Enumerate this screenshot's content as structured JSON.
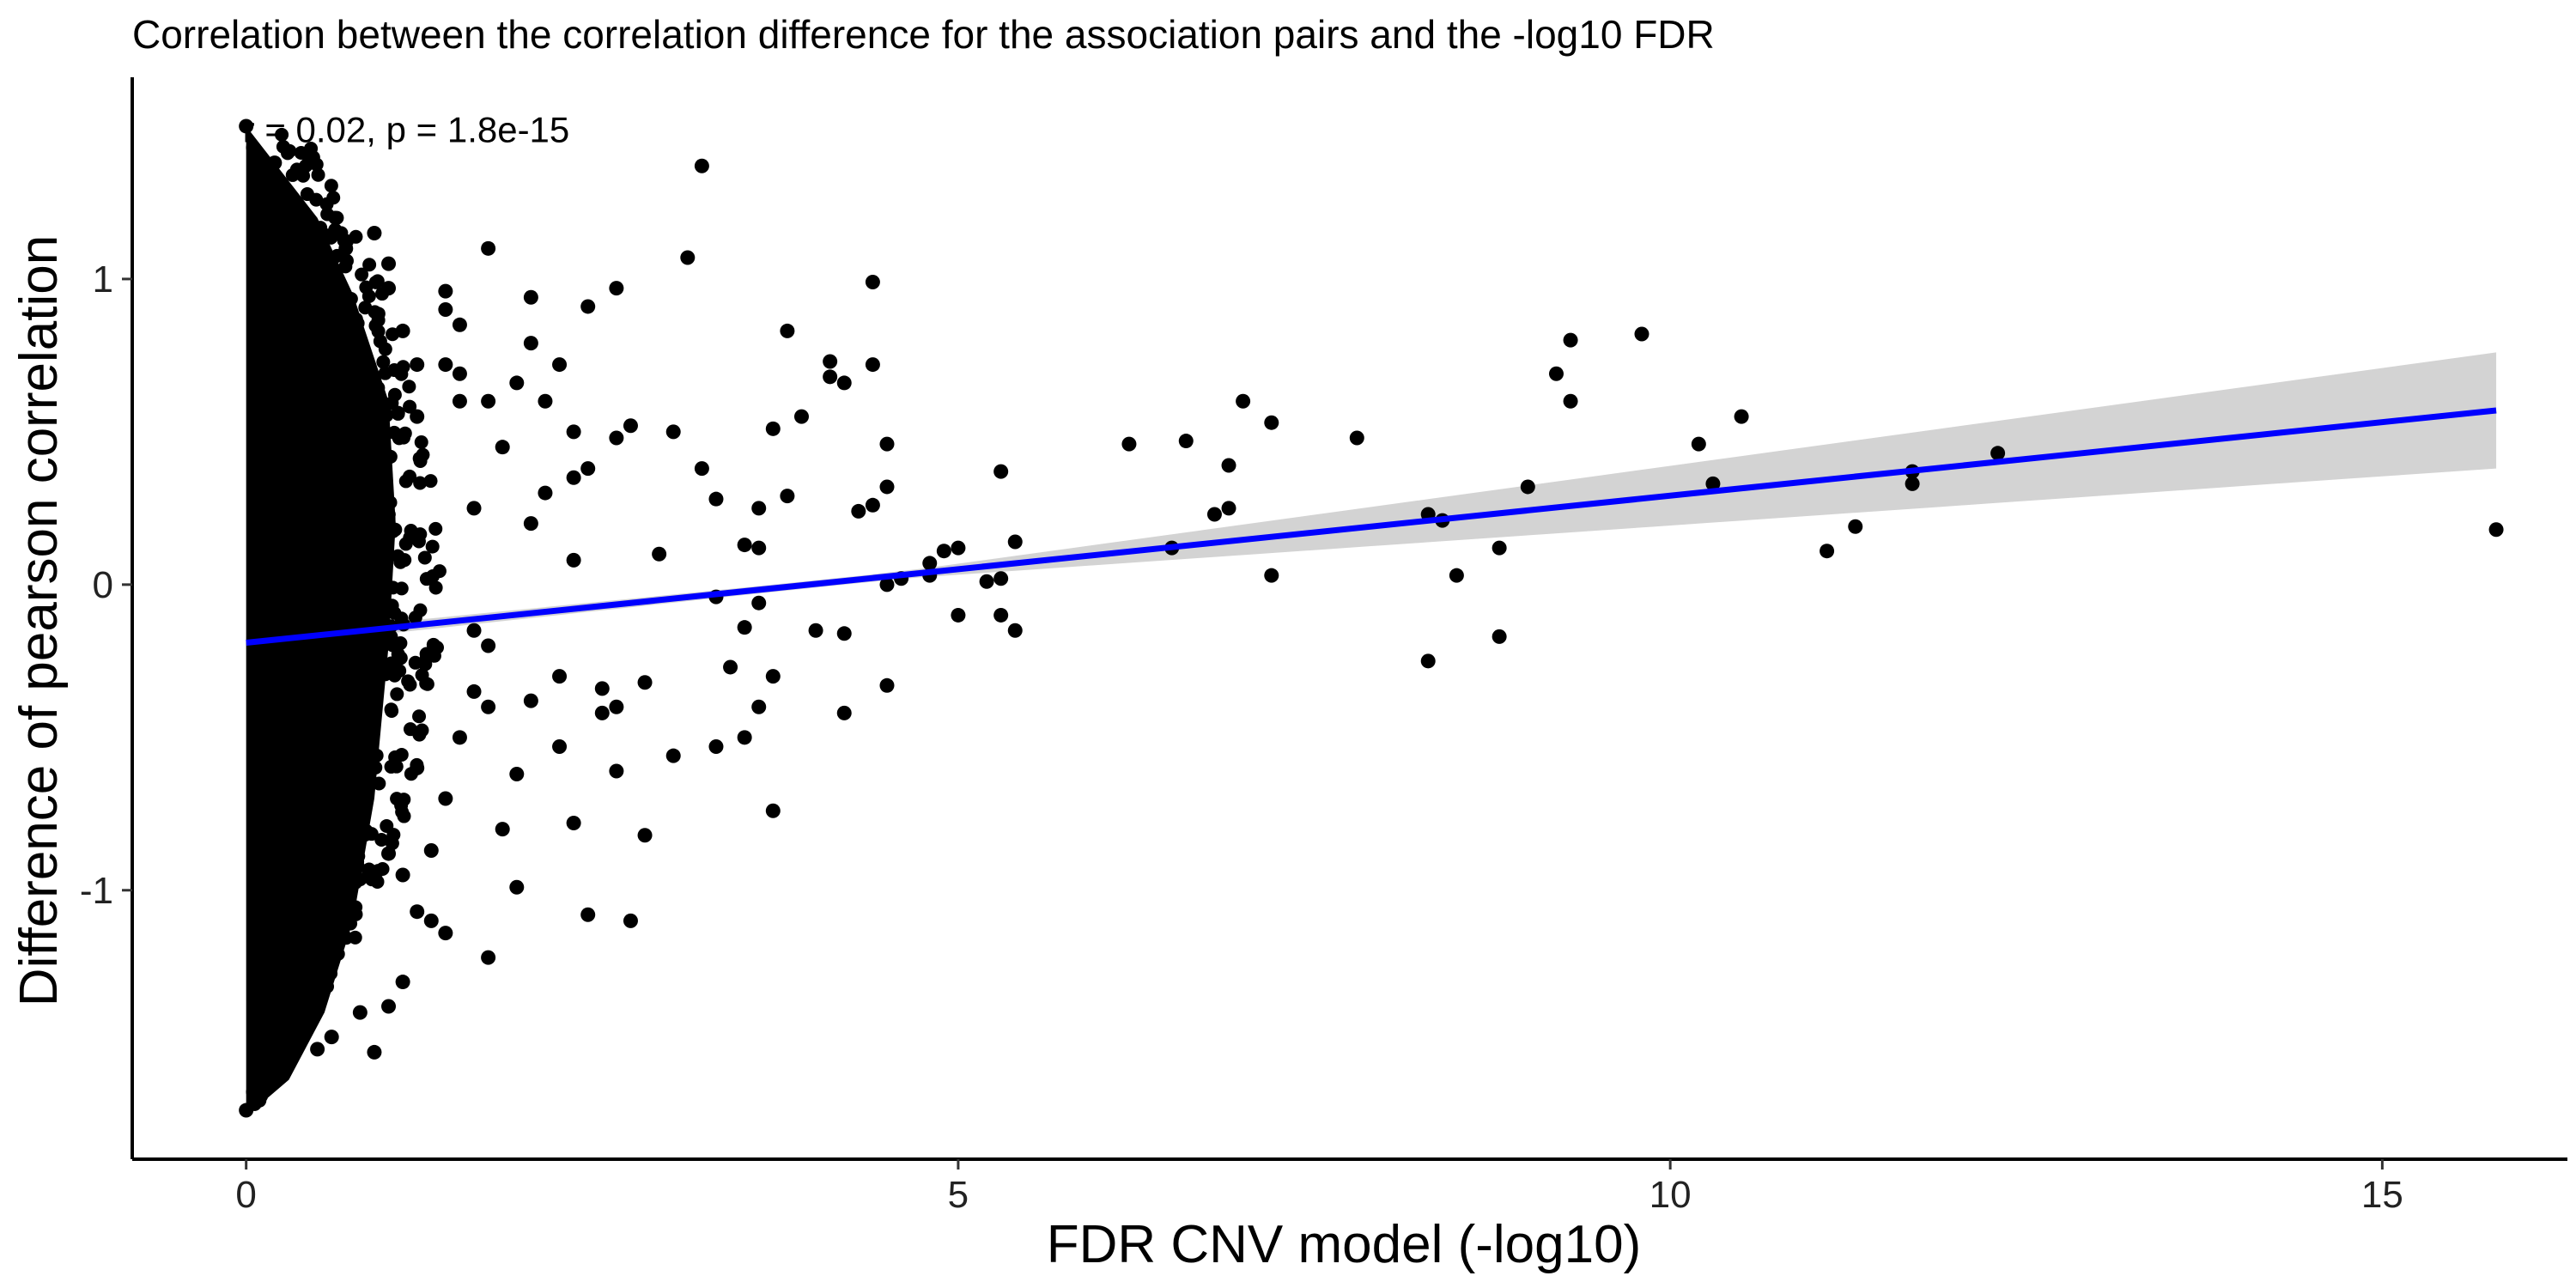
{
  "chart_data": {
    "type": "scatter",
    "title": "Correlation between the correlation difference for the association pairs and the -log10 FDR",
    "xlabel": "FDR CNV model (-log10)",
    "ylabel": "Difference of pearson correlation",
    "xlim": [
      -0.8,
      16.3
    ],
    "ylim": [
      -1.88,
      1.66
    ],
    "x_ticks": [
      0,
      5,
      10,
      15
    ],
    "y_ticks": [
      -1,
      0,
      1
    ],
    "grid": false,
    "legend": "none",
    "annotation": "r = 0.02, p = 1.8e-15",
    "annotation_position": [
      0,
      1.49
    ],
    "point_color": "#000000",
    "fit": {
      "type": "linear",
      "x_range": [
        0,
        15.8
      ],
      "y_start": -0.19,
      "y_end": 0.57,
      "line_color": "#0000ff",
      "band_color": "#d3d3d3",
      "band_halfwidth_start": 0.02,
      "band_halfwidth_end": 0.19,
      "band_min_at": 4.5
    },
    "dense_cluster": {
      "description": "dense mass of points",
      "x_range": [
        0,
        1.0
      ],
      "y_range": [
        -1.7,
        1.5
      ]
    },
    "points": [
      [
        3.2,
        1.37
      ],
      [
        3.1,
        1.07
      ],
      [
        4.4,
        0.99
      ],
      [
        3.8,
        0.83
      ],
      [
        9.8,
        0.82
      ],
      [
        9.3,
        0.8
      ],
      [
        9.2,
        0.69
      ],
      [
        9.3,
        0.6
      ],
      [
        7.0,
        0.6
      ],
      [
        7.2,
        0.53
      ],
      [
        10.5,
        0.55
      ],
      [
        10.2,
        0.46
      ],
      [
        6.2,
        0.46
      ],
      [
        6.6,
        0.47
      ],
      [
        7.8,
        0.48
      ],
      [
        6.9,
        0.39
      ],
      [
        5.3,
        0.37
      ],
      [
        4.1,
        0.73
      ],
      [
        4.4,
        0.72
      ],
      [
        4.1,
        0.68
      ],
      [
        4.2,
        0.66
      ],
      [
        3.9,
        0.55
      ],
      [
        3.7,
        0.51
      ],
      [
        4.5,
        0.46
      ],
      [
        4.5,
        0.32
      ],
      [
        4.4,
        0.26
      ],
      [
        4.3,
        0.24
      ],
      [
        3.8,
        0.29
      ],
      [
        3.6,
        0.25
      ],
      [
        3.5,
        0.13
      ],
      [
        3.6,
        0.12
      ],
      [
        3.3,
        0.28
      ],
      [
        3.2,
        0.38
      ],
      [
        3.0,
        0.5
      ],
      [
        2.7,
        0.52
      ],
      [
        2.6,
        0.48
      ],
      [
        2.9,
        0.1
      ],
      [
        3.3,
        -0.04
      ],
      [
        3.6,
        -0.06
      ],
      [
        3.5,
        -0.14
      ],
      [
        3.4,
        -0.27
      ],
      [
        3.7,
        -0.3
      ],
      [
        3.6,
        -0.4
      ],
      [
        4.0,
        -0.15
      ],
      [
        4.2,
        -0.16
      ],
      [
        4.2,
        -0.42
      ],
      [
        4.5,
        -0.33
      ],
      [
        3.7,
        -0.74
      ],
      [
        3.3,
        -0.53
      ],
      [
        3.5,
        -0.5
      ],
      [
        3.0,
        -0.56
      ],
      [
        2.8,
        -0.32
      ],
      [
        2.6,
        -0.4
      ],
      [
        2.5,
        -0.34
      ],
      [
        2.5,
        -0.42
      ],
      [
        2.8,
        -0.82
      ],
      [
        2.6,
        -0.61
      ],
      [
        2.7,
        -1.1
      ],
      [
        2.4,
        -1.08
      ],
      [
        2.3,
        -0.78
      ],
      [
        2.2,
        -0.53
      ],
      [
        1.9,
        -0.62
      ],
      [
        1.9,
        -0.99
      ],
      [
        1.8,
        -0.8
      ],
      [
        1.7,
        -0.4
      ],
      [
        1.7,
        -0.2
      ],
      [
        1.6,
        -0.15
      ],
      [
        1.7,
        -1.22
      ],
      [
        2.0,
        -0.38
      ],
      [
        2.2,
        -0.3
      ],
      [
        2.3,
        0.08
      ],
      [
        2.6,
        0.97
      ],
      [
        2.4,
        0.91
      ],
      [
        2.0,
        0.94
      ],
      [
        1.7,
        1.1
      ],
      [
        2.2,
        0.72
      ],
      [
        2.0,
        0.79
      ],
      [
        2.1,
        0.6
      ],
      [
        2.3,
        0.5
      ],
      [
        2.4,
        0.38
      ],
      [
        2.3,
        0.35
      ],
      [
        2.1,
        0.3
      ],
      [
        2.0,
        0.2
      ],
      [
        1.6,
        0.25
      ],
      [
        1.5,
        0.85
      ],
      [
        1.4,
        0.96
      ],
      [
        1.4,
        0.9
      ],
      [
        1.5,
        0.69
      ],
      [
        1.5,
        0.6
      ],
      [
        1.4,
        0.72
      ],
      [
        1.2,
        0.72
      ],
      [
        1.2,
        0.55
      ],
      [
        1.0,
        1.05
      ],
      [
        1.0,
        0.97
      ],
      [
        1.1,
        0.83
      ],
      [
        0.9,
        1.15
      ],
      [
        1.7,
        0.6
      ],
      [
        1.9,
        0.66
      ],
      [
        1.8,
        0.45
      ],
      [
        1.1,
        -1.3
      ],
      [
        1.2,
        -1.07
      ],
      [
        1.3,
        -1.1
      ],
      [
        1.4,
        -1.14
      ],
      [
        1.0,
        -1.38
      ],
      [
        0.9,
        -1.53
      ],
      [
        1.1,
        -0.95
      ],
      [
        1.0,
        -0.88
      ],
      [
        1.3,
        -0.87
      ],
      [
        1.4,
        -0.7
      ],
      [
        1.2,
        -0.6
      ],
      [
        1.5,
        -0.5
      ],
      [
        1.6,
        -0.35
      ],
      [
        4.8,
        0.07
      ],
      [
        4.9,
        0.11
      ],
      [
        5.0,
        0.12
      ],
      [
        4.8,
        0.03
      ],
      [
        5.0,
        -0.1
      ],
      [
        5.3,
        -0.1
      ],
      [
        5.4,
        -0.15
      ],
      [
        5.4,
        0.14
      ],
      [
        5.2,
        0.01
      ],
      [
        4.5,
        0.0
      ],
      [
        4.6,
        0.02
      ],
      [
        5.3,
        0.02
      ],
      [
        6.5,
        0.12
      ],
      [
        6.8,
        0.23
      ],
      [
        6.9,
        0.25
      ],
      [
        7.2,
        0.03
      ],
      [
        8.3,
        0.23
      ],
      [
        8.4,
        0.21
      ],
      [
        8.5,
        0.03
      ],
      [
        8.3,
        -0.25
      ],
      [
        8.8,
        -0.17
      ],
      [
        8.8,
        0.12
      ],
      [
        9.0,
        0.32
      ],
      [
        10.3,
        0.33
      ],
      [
        11.1,
        0.11
      ],
      [
        11.3,
        0.19
      ],
      [
        11.7,
        0.37
      ],
      [
        11.7,
        0.33
      ],
      [
        12.3,
        0.43
      ],
      [
        15.8,
        0.18
      ],
      [
        0.0,
        1.5
      ],
      [
        0.05,
        1.43
      ],
      [
        0.1,
        1.4
      ],
      [
        0.2,
        1.38
      ],
      [
        0.0,
        -1.72
      ],
      [
        0.05,
        -1.66
      ],
      [
        0.1,
        -1.62
      ],
      [
        0.2,
        -1.6
      ],
      [
        0.3,
        1.2
      ],
      [
        0.4,
        1.18
      ],
      [
        0.5,
        -1.52
      ],
      [
        0.6,
        -1.48
      ],
      [
        0.7,
        1.1
      ],
      [
        0.8,
        -1.4
      ]
    ]
  }
}
